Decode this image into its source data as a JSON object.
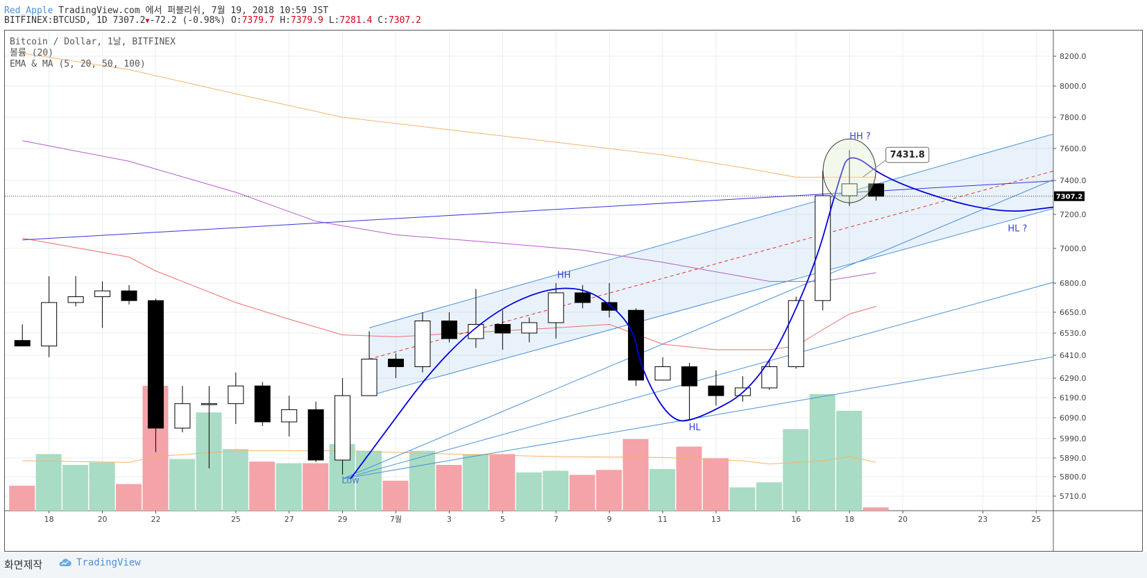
{
  "header": {
    "author": "Red_Apple",
    "publish_text": "TradingView.com 에서 퍼블리쉬, 7월 19, 2018 10:59 JST",
    "symbol_line": "BITFINEX:BTCUSD, 1D 7307.2",
    "change_arrow": "▼",
    "change": "-72.2 (-0.98%)",
    "o_label": "O:",
    "o_value": "7379.7",
    "h_label": "H:",
    "h_value": "7379.9",
    "l_label": "L:",
    "l_value": "7281.4",
    "c_label": "C:",
    "c_value": "7307.2"
  },
  "footer": {
    "made_label": "화면제작",
    "brand": "TradingView"
  },
  "colors": {
    "up_body": "#ffffff",
    "down_body": "#000000",
    "vol_up": "#a8dcc4",
    "vol_down": "#f4a3a8",
    "ema_fast": "#f26b6b",
    "ma_mid": "#b55bc9",
    "ma_slow": "#f7b26b",
    "channel": "#4a90d9",
    "curve": "#0000dd",
    "trend": "#3333dd",
    "mid": "#e03030"
  },
  "chart_data": {
    "type": "candlestick",
    "legend_lines": [
      "Bitcoin / Dollar, 1날, BITFINEX",
      "볼륨 (20)",
      "EMA & MA (5, 20, 50, 100)"
    ],
    "y_ticks": [
      "8200.0",
      "8000.0",
      "7800.0",
      "7600.0",
      "7400.0",
      "7200.0",
      "7000.0",
      "6800.0",
      "6650.0",
      "6530.0",
      "6410.0",
      "6290.0",
      "6190.0",
      "6090.0",
      "5990.0",
      "5890.0",
      "5800.0",
      "5710.0"
    ],
    "x_ticks": [
      {
        "day": 18,
        "label": "18"
      },
      {
        "day": 20,
        "label": "20"
      },
      {
        "day": 22,
        "label": "22"
      },
      {
        "day": 25,
        "label": "25"
      },
      {
        "day": 27,
        "label": "27"
      },
      {
        "day": 29,
        "label": "29"
      },
      {
        "day": 31,
        "label": "7월"
      },
      {
        "day": 33,
        "label": "3"
      },
      {
        "day": 35,
        "label": "5"
      },
      {
        "day": 37,
        "label": "7"
      },
      {
        "day": 39,
        "label": "9"
      },
      {
        "day": 41,
        "label": "11"
      },
      {
        "day": 43,
        "label": "13"
      },
      {
        "day": 46,
        "label": "16"
      },
      {
        "day": 48,
        "label": "18"
      },
      {
        "day": 50,
        "label": "20"
      },
      {
        "day": 53,
        "label": "23"
      },
      {
        "day": 55,
        "label": "25"
      }
    ],
    "candles": [
      {
        "day": 17,
        "o": 6490,
        "h": 6580,
        "l": 6470,
        "c": 6460,
        "v": 0.3
      },
      {
        "day": 18,
        "o": 6460,
        "h": 6840,
        "l": 6400,
        "c": 6700,
        "v": 0.68
      },
      {
        "day": 19,
        "o": 6700,
        "h": 6840,
        "l": 6680,
        "c": 6730,
        "v": 0.55
      },
      {
        "day": 20,
        "o": 6730,
        "h": 6810,
        "l": 6560,
        "c": 6760,
        "v": 0.58
      },
      {
        "day": 21,
        "o": 6760,
        "h": 6790,
        "l": 6690,
        "c": 6710,
        "v": 0.32
      },
      {
        "day": 22,
        "o": 6710,
        "h": 6720,
        "l": 5920,
        "c": 6040,
        "v": 1.5
      },
      {
        "day": 23,
        "o": 6040,
        "h": 6250,
        "l": 6020,
        "c": 6160,
        "v": 0.62
      },
      {
        "day": 24,
        "o": 6160,
        "h": 6250,
        "l": 5840,
        "c": 6160,
        "v": 1.18
      },
      {
        "day": 25,
        "o": 6160,
        "h": 6320,
        "l": 6060,
        "c": 6250,
        "v": 0.74
      },
      {
        "day": 26,
        "o": 6250,
        "h": 6270,
        "l": 6050,
        "c": 6070,
        "v": 0.59
      },
      {
        "day": 27,
        "o": 6070,
        "h": 6200,
        "l": 6000,
        "c": 6130,
        "v": 0.57
      },
      {
        "day": 28,
        "o": 6130,
        "h": 6170,
        "l": 5870,
        "c": 5880,
        "v": 0.57
      },
      {
        "day": 29,
        "o": 5880,
        "h": 6290,
        "l": 5810,
        "c": 6200,
        "v": 0.8
      },
      {
        "day": 30,
        "o": 6200,
        "h": 6540,
        "l": 6200,
        "c": 6390,
        "v": 0.72
      },
      {
        "day": 31,
        "o": 6390,
        "h": 6420,
        "l": 6290,
        "c": 6350,
        "v": 0.36
      },
      {
        "day": 32,
        "o": 6350,
        "h": 6650,
        "l": 6320,
        "c": 6600,
        "v": 0.72
      },
      {
        "day": 33,
        "o": 6600,
        "h": 6650,
        "l": 6480,
        "c": 6500,
        "v": 0.55
      },
      {
        "day": 34,
        "o": 6500,
        "h": 6770,
        "l": 6450,
        "c": 6580,
        "v": 0.68
      },
      {
        "day": 35,
        "o": 6580,
        "h": 6660,
        "l": 6440,
        "c": 6530,
        "v": 0.68
      },
      {
        "day": 36,
        "o": 6530,
        "h": 6620,
        "l": 6480,
        "c": 6590,
        "v": 0.46
      },
      {
        "day": 37,
        "o": 6590,
        "h": 6800,
        "l": 6500,
        "c": 6750,
        "v": 0.48
      },
      {
        "day": 38,
        "o": 6750,
        "h": 6790,
        "l": 6670,
        "c": 6700,
        "v": 0.43
      },
      {
        "day": 39,
        "o": 6700,
        "h": 6800,
        "l": 6620,
        "c": 6660,
        "v": 0.49
      },
      {
        "day": 40,
        "o": 6660,
        "h": 6670,
        "l": 6250,
        "c": 6280,
        "v": 0.86
      },
      {
        "day": 41,
        "o": 6280,
        "h": 6400,
        "l": 6280,
        "c": 6350,
        "v": 0.5
      },
      {
        "day": 42,
        "o": 6350,
        "h": 6370,
        "l": 6080,
        "c": 6250,
        "v": 0.77
      },
      {
        "day": 43,
        "o": 6250,
        "h": 6330,
        "l": 6150,
        "c": 6200,
        "v": 0.63
      },
      {
        "day": 44,
        "o": 6200,
        "h": 6300,
        "l": 6170,
        "c": 6240,
        "v": 0.28
      },
      {
        "day": 45,
        "o": 6240,
        "h": 6380,
        "l": 6230,
        "c": 6350,
        "v": 0.34
      },
      {
        "day": 46,
        "o": 6350,
        "h": 6730,
        "l": 6340,
        "c": 6710,
        "v": 0.98
      },
      {
        "day": 47,
        "o": 6710,
        "h": 7460,
        "l": 6660,
        "c": 7310,
        "v": 1.4
      },
      {
        "day": 48,
        "o": 7310,
        "h": 7590,
        "l": 7250,
        "c": 7380,
        "v": 1.2
      },
      {
        "day": 49,
        "o": 7380,
        "h": 7380,
        "l": 7281,
        "c": 7307,
        "v": 0.04
      }
    ],
    "ema_fast": [
      [
        17,
        7060
      ],
      [
        21,
        6950
      ],
      [
        22,
        6870
      ],
      [
        25,
        6700
      ],
      [
        27,
        6610
      ],
      [
        29,
        6520
      ],
      [
        31,
        6510
      ],
      [
        37,
        6560
      ],
      [
        39,
        6580
      ],
      [
        41,
        6470
      ],
      [
        43,
        6440
      ],
      [
        45,
        6440
      ],
      [
        46,
        6460
      ],
      [
        47,
        6550
      ],
      [
        48,
        6640
      ],
      [
        49,
        6680
      ]
    ],
    "ma_mid": [
      [
        17,
        7650
      ],
      [
        21,
        7520
      ],
      [
        25,
        7330
      ],
      [
        28,
        7160
      ],
      [
        31,
        7080
      ],
      [
        35,
        7030
      ],
      [
        38,
        6990
      ],
      [
        41,
        6920
      ],
      [
        45,
        6810
      ],
      [
        47,
        6810
      ],
      [
        49,
        6860
      ]
    ],
    "ma_slow": [
      [
        17,
        8220
      ],
      [
        21,
        8110
      ],
      [
        25,
        7950
      ],
      [
        29,
        7800
      ],
      [
        33,
        7720
      ],
      [
        37,
        7640
      ],
      [
        41,
        7560
      ],
      [
        44,
        7480
      ],
      [
        46,
        7420
      ],
      [
        49,
        7420
      ]
    ],
    "vol_ma": [
      [
        17,
        0.6
      ],
      [
        21,
        0.58
      ],
      [
        22,
        0.65
      ],
      [
        25,
        0.72
      ],
      [
        29,
        0.72
      ],
      [
        33,
        0.68
      ],
      [
        37,
        0.65
      ],
      [
        41,
        0.64
      ],
      [
        44,
        0.6
      ],
      [
        45,
        0.56
      ],
      [
        47,
        0.6
      ],
      [
        48,
        0.65
      ],
      [
        49,
        0.58
      ]
    ],
    "channel_upper": [
      [
        30,
        6560
      ],
      [
        56,
        7710
      ]
    ],
    "channel_lower": [
      [
        30,
        6200
      ],
      [
        56,
        7250
      ]
    ],
    "channel_mid": [
      [
        30,
        6390
      ],
      [
        56,
        7475
      ]
    ],
    "trendline": [
      [
        17,
        7050
      ],
      [
        56,
        7400
      ]
    ],
    "fan_lines": [
      [
        [
          29,
          5790
        ],
        [
          56,
          7430
        ]
      ],
      [
        [
          29,
          5790
        ],
        [
          56,
          6820
        ]
      ],
      [
        [
          29,
          5790
        ],
        [
          56,
          6410
        ]
      ]
    ],
    "current_price": 7307.2,
    "annotations": [
      {
        "text": "Low",
        "day": 29.3,
        "price": 5770
      },
      {
        "text": "HH",
        "day": 37.3,
        "price": 6830
      },
      {
        "text": "HL",
        "day": 42.2,
        "price": 6030
      },
      {
        "text": "HH ?",
        "day": 48.4,
        "price": 7660
      },
      {
        "text": "HL ?",
        "day": 54.3,
        "price": 7100
      }
    ],
    "price_callout": "7431.8",
    "price_label": "7307.2"
  }
}
